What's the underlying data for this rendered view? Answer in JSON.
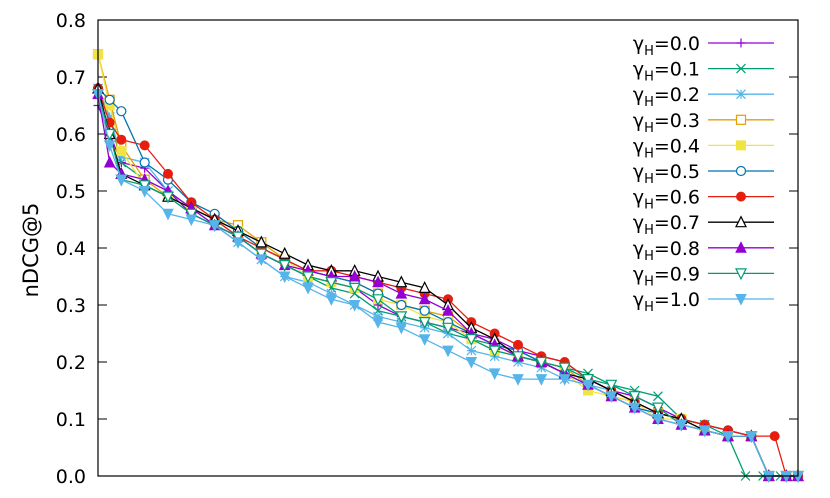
{
  "chart_data": {
    "type": "line",
    "title": "",
    "xlabel": "",
    "ylabel": "nDCG@5",
    "ylim": [
      0,
      0.8
    ],
    "xlim": [
      0,
      120
    ],
    "x_tick_labels": false,
    "y_ticks": [
      "0.0",
      "0.1",
      "0.2",
      "0.3",
      "0.4",
      "0.5",
      "0.6",
      "0.7",
      "0.8"
    ],
    "grid": false,
    "legend_position": "top-right",
    "series": [
      {
        "name": "γH=0.0",
        "label_symbol": "γ",
        "label_sub": "H",
        "label_value": "=0.0",
        "color": "#9400d3",
        "marker": "plus",
        "x": [
          0,
          2,
          4,
          8,
          12,
          16,
          20,
          24,
          28,
          32,
          36,
          40,
          44,
          48,
          52,
          56,
          60,
          64,
          68,
          72,
          76,
          80,
          84,
          88,
          92,
          96,
          100,
          104,
          108,
          112,
          115,
          118,
          120
        ],
        "y": [
          0.65,
          0.6,
          0.55,
          0.54,
          0.5,
          0.46,
          0.44,
          0.42,
          0.39,
          0.37,
          0.35,
          0.34,
          0.33,
          0.3,
          0.28,
          0.27,
          0.26,
          0.25,
          0.24,
          0.22,
          0.21,
          0.2,
          0.17,
          0.15,
          0.14,
          0.12,
          0.1,
          0.09,
          0.08,
          0.07,
          0.0,
          0.0,
          0.0
        ]
      },
      {
        "name": "γH=0.1",
        "label_symbol": "γ",
        "label_sub": "H",
        "label_value": "=0.1",
        "color": "#009e73",
        "marker": "x",
        "x": [
          0,
          2,
          4,
          8,
          12,
          16,
          20,
          24,
          28,
          32,
          36,
          40,
          44,
          48,
          52,
          56,
          60,
          64,
          68,
          72,
          76,
          80,
          84,
          88,
          92,
          96,
          100,
          104,
          108,
          111,
          114,
          117,
          120
        ],
        "y": [
          0.68,
          0.63,
          0.55,
          0.52,
          0.5,
          0.47,
          0.45,
          0.42,
          0.39,
          0.37,
          0.35,
          0.33,
          0.32,
          0.29,
          0.28,
          0.27,
          0.25,
          0.24,
          0.23,
          0.22,
          0.2,
          0.19,
          0.18,
          0.16,
          0.15,
          0.14,
          0.1,
          0.09,
          0.07,
          0.0,
          0.0,
          0.0,
          0.0
        ]
      },
      {
        "name": "γH=0.2",
        "label_symbol": "γ",
        "label_sub": "H",
        "label_value": "=0.2",
        "color": "#56b4e9",
        "marker": "star",
        "x": [
          0,
          2,
          4,
          8,
          12,
          16,
          20,
          24,
          28,
          32,
          36,
          40,
          44,
          48,
          52,
          56,
          60,
          64,
          68,
          72,
          76,
          80,
          84,
          88,
          92,
          96,
          100,
          104,
          108,
          112,
          115,
          118,
          120
        ],
        "y": [
          0.68,
          0.63,
          0.56,
          0.55,
          0.5,
          0.47,
          0.44,
          0.41,
          0.38,
          0.35,
          0.34,
          0.32,
          0.3,
          0.28,
          0.27,
          0.26,
          0.25,
          0.22,
          0.21,
          0.2,
          0.19,
          0.17,
          0.16,
          0.15,
          0.13,
          0.11,
          0.1,
          0.08,
          0.07,
          0.07,
          0.0,
          0.0,
          0.0
        ]
      },
      {
        "name": "γH=0.3",
        "label_symbol": "γ",
        "label_sub": "H",
        "label_value": "=0.3",
        "color": "#e69f00",
        "marker": "square-open",
        "x": [
          0,
          2,
          4,
          8,
          12,
          16,
          20,
          24,
          28,
          32,
          36,
          40,
          44,
          48,
          52,
          56,
          60,
          64,
          68,
          72,
          76,
          80,
          84,
          88,
          92,
          96,
          100,
          104,
          108,
          112,
          115,
          118,
          120
        ],
        "y": [
          0.74,
          0.66,
          0.58,
          0.52,
          0.49,
          0.47,
          0.45,
          0.44,
          0.41,
          0.38,
          0.36,
          0.35,
          0.34,
          0.32,
          0.3,
          0.29,
          0.28,
          0.25,
          0.23,
          0.21,
          0.2,
          0.19,
          0.16,
          0.14,
          0.13,
          0.11,
          0.1,
          0.08,
          0.07,
          0.07,
          0.0,
          0.0,
          0.0
        ]
      },
      {
        "name": "γH=0.4",
        "label_symbol": "γ",
        "label_sub": "H",
        "label_value": "=0.4",
        "color": "#f0e442",
        "marker": "square-filled",
        "x": [
          0,
          2,
          4,
          8,
          12,
          16,
          20,
          24,
          28,
          32,
          36,
          40,
          44,
          48,
          52,
          56,
          60,
          64,
          68,
          72,
          76,
          80,
          84,
          88,
          92,
          96,
          100,
          104,
          108,
          112,
          115,
          118,
          120
        ],
        "y": [
          0.74,
          0.65,
          0.57,
          0.51,
          0.49,
          0.47,
          0.45,
          0.43,
          0.4,
          0.38,
          0.35,
          0.34,
          0.33,
          0.31,
          0.3,
          0.28,
          0.27,
          0.24,
          0.22,
          0.21,
          0.2,
          0.18,
          0.15,
          0.14,
          0.13,
          0.1,
          0.1,
          0.08,
          0.07,
          0.07,
          0.0,
          0.0,
          0.0
        ]
      },
      {
        "name": "γH=0.5",
        "label_symbol": "γ",
        "label_sub": "H",
        "label_value": "=0.5",
        "color": "#0072b2",
        "marker": "circle-open",
        "x": [
          0,
          2,
          4,
          8,
          12,
          16,
          20,
          24,
          28,
          32,
          36,
          40,
          44,
          48,
          52,
          56,
          60,
          64,
          68,
          72,
          76,
          80,
          84,
          88,
          92,
          96,
          100,
          104,
          108,
          112,
          115,
          118,
          120
        ],
        "y": [
          0.68,
          0.66,
          0.64,
          0.55,
          0.52,
          0.48,
          0.46,
          0.43,
          0.4,
          0.38,
          0.36,
          0.35,
          0.34,
          0.32,
          0.3,
          0.29,
          0.27,
          0.25,
          0.23,
          0.22,
          0.2,
          0.18,
          0.16,
          0.14,
          0.12,
          0.11,
          0.1,
          0.09,
          0.08,
          0.07,
          0.0,
          0.0,
          0.0
        ]
      },
      {
        "name": "γH=0.6",
        "label_symbol": "γ",
        "label_sub": "H",
        "label_value": "=0.6",
        "color": "#e51e10",
        "marker": "circle-filled",
        "x": [
          0,
          2,
          4,
          8,
          12,
          16,
          20,
          24,
          28,
          32,
          36,
          40,
          44,
          48,
          52,
          56,
          60,
          64,
          68,
          72,
          76,
          80,
          84,
          88,
          92,
          96,
          100,
          104,
          108,
          112,
          116,
          118,
          120
        ],
        "y": [
          0.68,
          0.62,
          0.59,
          0.58,
          0.53,
          0.48,
          0.45,
          0.42,
          0.4,
          0.38,
          0.36,
          0.36,
          0.35,
          0.34,
          0.33,
          0.32,
          0.31,
          0.27,
          0.25,
          0.23,
          0.21,
          0.2,
          0.17,
          0.15,
          0.13,
          0.11,
          0.1,
          0.09,
          0.08,
          0.07,
          0.07,
          0.0,
          0.0
        ]
      },
      {
        "name": "γH=0.7",
        "label_symbol": "γ",
        "label_sub": "H",
        "label_value": "=0.7",
        "color": "#000000",
        "marker": "triangle-open",
        "x": [
          0,
          2,
          4,
          8,
          12,
          16,
          20,
          24,
          28,
          32,
          36,
          40,
          44,
          48,
          52,
          56,
          60,
          64,
          68,
          72,
          76,
          80,
          84,
          88,
          92,
          96,
          100,
          104,
          108,
          112,
          115,
          118,
          120
        ],
        "y": [
          0.68,
          0.6,
          0.53,
          0.51,
          0.49,
          0.47,
          0.45,
          0.43,
          0.41,
          0.39,
          0.37,
          0.36,
          0.36,
          0.35,
          0.34,
          0.33,
          0.3,
          0.26,
          0.24,
          0.21,
          0.2,
          0.18,
          0.17,
          0.15,
          0.13,
          0.11,
          0.1,
          0.08,
          0.07,
          0.07,
          0.0,
          0.0,
          0.0
        ]
      },
      {
        "name": "γH=0.8",
        "label_symbol": "γ",
        "label_sub": "H",
        "label_value": "=0.8",
        "color": "#9400d3",
        "marker": "triangle-filled",
        "x": [
          0,
          2,
          4,
          8,
          12,
          16,
          20,
          24,
          28,
          32,
          36,
          40,
          44,
          48,
          52,
          56,
          60,
          64,
          68,
          72,
          76,
          80,
          84,
          88,
          92,
          96,
          100,
          104,
          108,
          112,
          115,
          118,
          120
        ],
        "y": [
          0.67,
          0.55,
          0.53,
          0.52,
          0.5,
          0.47,
          0.44,
          0.42,
          0.39,
          0.37,
          0.36,
          0.35,
          0.35,
          0.34,
          0.32,
          0.31,
          0.29,
          0.25,
          0.23,
          0.21,
          0.2,
          0.18,
          0.16,
          0.14,
          0.12,
          0.1,
          0.09,
          0.08,
          0.07,
          0.07,
          0.0,
          0.0,
          0.0
        ]
      },
      {
        "name": "γH=0.9",
        "label_symbol": "γ",
        "label_sub": "H",
        "label_value": "=0.9",
        "color": "#009e73",
        "marker": "triangle-down-open",
        "x": [
          0,
          2,
          4,
          8,
          12,
          16,
          20,
          24,
          28,
          32,
          36,
          40,
          44,
          48,
          52,
          56,
          60,
          64,
          68,
          72,
          76,
          80,
          84,
          88,
          92,
          96,
          100,
          104,
          108,
          112,
          115,
          118,
          120
        ],
        "y": [
          0.67,
          0.6,
          0.52,
          0.51,
          0.49,
          0.46,
          0.44,
          0.42,
          0.39,
          0.37,
          0.35,
          0.34,
          0.33,
          0.31,
          0.28,
          0.27,
          0.26,
          0.24,
          0.22,
          0.21,
          0.2,
          0.19,
          0.17,
          0.16,
          0.14,
          0.12,
          0.09,
          0.08,
          0.07,
          0.07,
          0.0,
          0.0,
          0.0
        ]
      },
      {
        "name": "γH=1.0",
        "label_symbol": "γ",
        "label_sub": "H",
        "label_value": "=1.0",
        "color": "#56b4e9",
        "marker": "triangle-down-filled",
        "x": [
          0,
          2,
          4,
          8,
          12,
          16,
          20,
          24,
          28,
          32,
          36,
          40,
          44,
          48,
          52,
          56,
          60,
          64,
          68,
          72,
          76,
          80,
          84,
          88,
          92,
          96,
          100,
          104,
          108,
          112,
          115,
          118,
          120
        ],
        "y": [
          0.67,
          0.58,
          0.52,
          0.5,
          0.46,
          0.45,
          0.44,
          0.41,
          0.38,
          0.35,
          0.33,
          0.31,
          0.3,
          0.27,
          0.26,
          0.24,
          0.22,
          0.2,
          0.18,
          0.17,
          0.17,
          0.17,
          0.16,
          0.14,
          0.12,
          0.1,
          0.09,
          0.08,
          0.07,
          0.07,
          0.0,
          0.0,
          0.0
        ]
      }
    ]
  }
}
